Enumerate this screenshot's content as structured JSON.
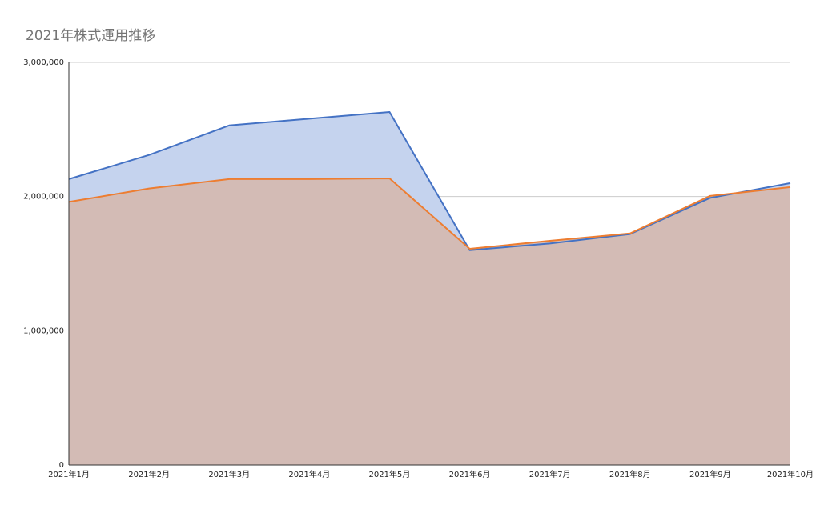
{
  "chart_data": {
    "type": "area",
    "title": "2021年株式運用推移",
    "xlabel": "",
    "ylabel": "",
    "categories": [
      "2021年1月",
      "2021年2月",
      "2021年3月",
      "2021年4月",
      "2021年5月",
      "2021年6月",
      "2021年7月",
      "2021年8月",
      "2021年9月",
      "2021年10月"
    ],
    "ylim": [
      0,
      3000000
    ],
    "yticks": [
      0,
      1000000,
      2000000,
      3000000
    ],
    "ytick_labels": [
      "0",
      "1,000,000",
      "2,000,000",
      "3,000,000"
    ],
    "grid": true,
    "legend": "none",
    "series": [
      {
        "color": "#4472c4",
        "fill": "#c5d3ee",
        "values": [
          2130000,
          2310000,
          2530000,
          2580000,
          2630000,
          1600000,
          1650000,
          1720000,
          1990000,
          2100000
        ]
      },
      {
        "color": "#ed7d31",
        "fill": "#d3bbb5",
        "values": [
          1960000,
          2060000,
          2130000,
          2130000,
          2135000,
          1610000,
          1670000,
          1725000,
          2005000,
          2070000
        ]
      }
    ]
  }
}
